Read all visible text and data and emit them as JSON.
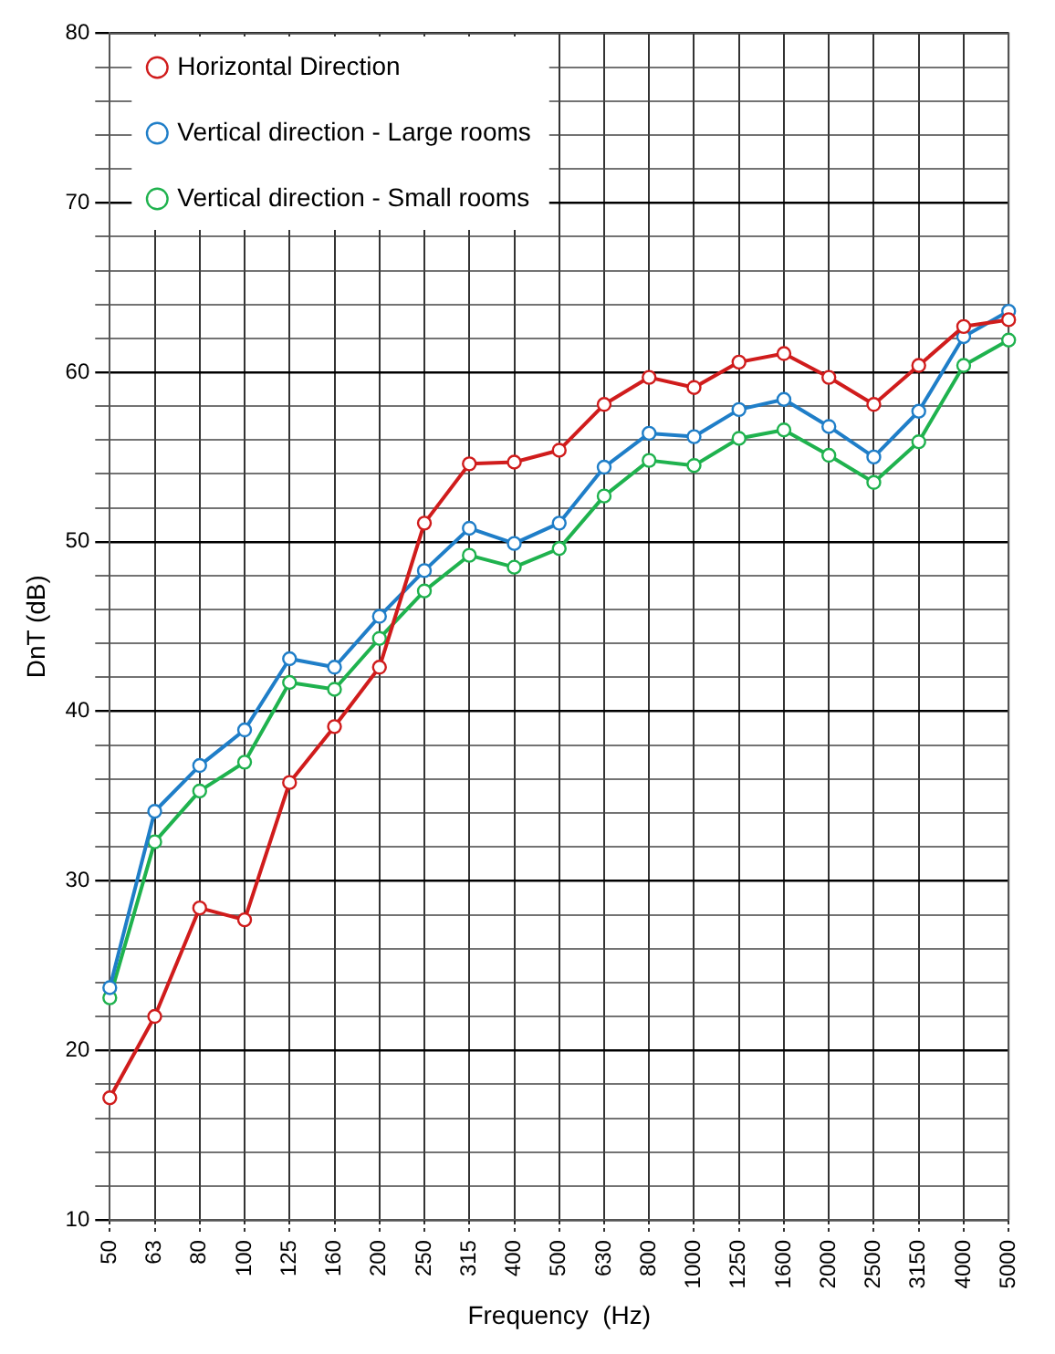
{
  "chart_data": {
    "type": "line",
    "xlabel": "Frequency  (Hz)",
    "ylabel": "DnT (dB)",
    "categories": [
      "50",
      "63",
      "80",
      "100",
      "125",
      "160",
      "200",
      "250",
      "315",
      "400",
      "500",
      "630",
      "800",
      "1000",
      "1250",
      "1600",
      "2000",
      "2500",
      "3150",
      "4000",
      "5000"
    ],
    "series": [
      {
        "name": "Horizontal Direction",
        "color": "#d01c1c",
        "values": [
          17.2,
          22.0,
          28.4,
          27.7,
          35.8,
          39.1,
          42.6,
          51.1,
          54.6,
          54.7,
          55.4,
          58.1,
          59.7,
          59.1,
          60.6,
          61.1,
          59.7,
          58.1,
          60.4,
          62.7,
          63.1
        ]
      },
      {
        "name": "Vertical direction - Large rooms",
        "color": "#1f7ec8",
        "values": [
          23.7,
          34.1,
          36.8,
          38.9,
          43.1,
          42.6,
          45.6,
          48.3,
          50.8,
          49.9,
          51.1,
          54.4,
          56.4,
          56.2,
          57.8,
          58.4,
          56.8,
          55.0,
          57.7,
          62.1,
          63.6
        ]
      },
      {
        "name": "Vertical direction - Small rooms",
        "color": "#1fb24e",
        "values": [
          23.1,
          32.3,
          35.3,
          37.0,
          41.7,
          41.3,
          44.3,
          47.1,
          49.2,
          48.5,
          49.6,
          52.7,
          54.8,
          54.5,
          56.1,
          56.6,
          55.1,
          53.5,
          55.9,
          60.4,
          61.9
        ]
      }
    ],
    "ylim": [
      10,
      80
    ],
    "yticks": [
      10,
      {
        "value": 12,
        "label": null
      },
      {
        "value": 14,
        "label": null
      },
      {
        "value": 16,
        "label": null
      },
      {
        "value": 18,
        "label": null
      },
      20,
      {
        "value": 22,
        "label": null
      },
      {
        "value": 24,
        "label": null
      },
      {
        "value": 26,
        "label": null
      },
      {
        "value": 28,
        "label": null
      },
      30,
      {
        "value": 32,
        "label": null
      },
      {
        "value": 34,
        "label": null
      },
      {
        "value": 36,
        "label": null
      },
      {
        "value": 38,
        "label": null
      },
      40,
      {
        "value": 42,
        "label": null
      },
      {
        "value": 44,
        "label": null
      },
      {
        "value": 46,
        "label": null
      },
      {
        "value": 48,
        "label": null
      },
      50,
      {
        "value": 52,
        "label": null
      },
      {
        "value": 54,
        "label": null
      },
      {
        "value": 56,
        "label": null
      },
      {
        "value": 58,
        "label": null
      },
      60,
      {
        "value": 62,
        "label": null
      },
      {
        "value": 64,
        "label": null
      },
      {
        "value": 66,
        "label": null
      },
      {
        "value": 68,
        "label": null
      },
      70,
      {
        "value": 72,
        "label": null
      },
      {
        "value": 74,
        "label": null
      },
      {
        "value": 76,
        "label": null
      },
      {
        "value": 78,
        "label": null
      },
      80
    ],
    "grid": true,
    "legend": "top left",
    "marker": "circle",
    "line_style": "solid"
  }
}
